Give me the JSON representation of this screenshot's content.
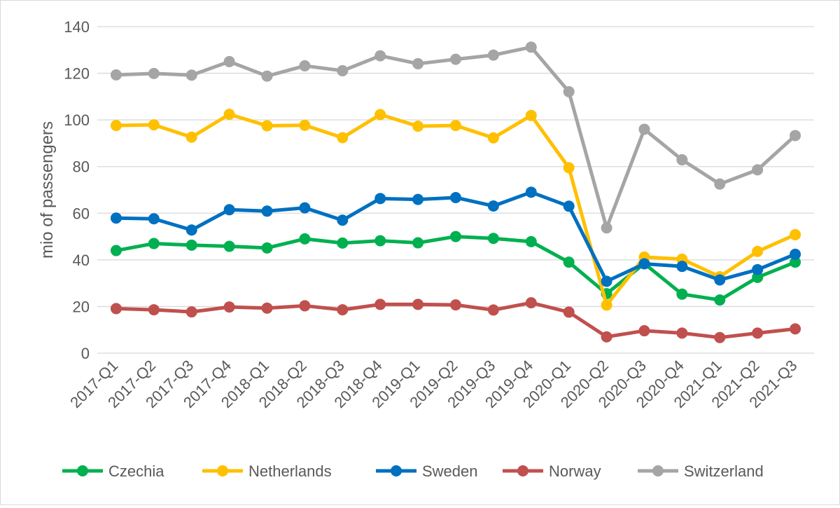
{
  "chart_data": {
    "type": "line",
    "ylabel": "mio of passengers",
    "ylim": [
      0,
      140
    ],
    "yticks": [
      0,
      20,
      40,
      60,
      80,
      100,
      120,
      140
    ],
    "grid": "horizontal",
    "legend_position": "bottom",
    "categories": [
      "2017-Q1",
      "2017-Q2",
      "2017-Q3",
      "2017-Q4",
      "2018-Q1",
      "2018-Q2",
      "2018-Q3",
      "2018-Q4",
      "2019-Q1",
      "2019-Q2",
      "2019-Q3",
      "2019-Q4",
      "2020-Q1",
      "2020-Q2",
      "2020-Q3",
      "2020-Q4",
      "2021-Q1",
      "2021-Q2",
      "2021-Q3"
    ],
    "series": [
      {
        "name": "Czechia",
        "color": "#00b050",
        "values": [
          44,
          47,
          46.3,
          45.8,
          45.1,
          49,
          47.2,
          48.2,
          47.3,
          50,
          49.2,
          47.8,
          39,
          25.5,
          38.4,
          25.3,
          22.8,
          32.5,
          39
        ]
      },
      {
        "name": "Netherlands",
        "color": "#ffc000",
        "values": [
          97.6,
          97.9,
          92.6,
          102.4,
          97.5,
          97.7,
          92.4,
          102.3,
          97.3,
          97.6,
          92.3,
          101.9,
          79.5,
          20.6,
          41.2,
          40.3,
          32.8,
          43.6,
          50.8
        ]
      },
      {
        "name": "Sweden",
        "color": "#0070c0",
        "values": [
          57.9,
          57.6,
          52.8,
          61.5,
          60.9,
          62.3,
          57,
          66.3,
          65.9,
          66.7,
          63.1,
          69,
          63,
          30.8,
          38.3,
          37.2,
          31.4,
          35.8,
          42.4
        ]
      },
      {
        "name": "Norway",
        "color": "#c0504d",
        "values": [
          19.1,
          18.6,
          17.7,
          19.8,
          19.3,
          20.3,
          18.6,
          20.9,
          20.9,
          20.7,
          18.5,
          21.6,
          17.6,
          7,
          9.6,
          8.6,
          6.7,
          8.6,
          10.4
        ]
      },
      {
        "name": "Switzerland",
        "color": "#a5a5a5",
        "values": [
          119.3,
          119.9,
          119.2,
          125,
          118.8,
          123.2,
          121.1,
          127.5,
          124.1,
          126,
          127.8,
          131.2,
          112.1,
          53.7,
          96,
          82.9,
          72.5,
          78.6,
          93.3
        ]
      }
    ]
  }
}
